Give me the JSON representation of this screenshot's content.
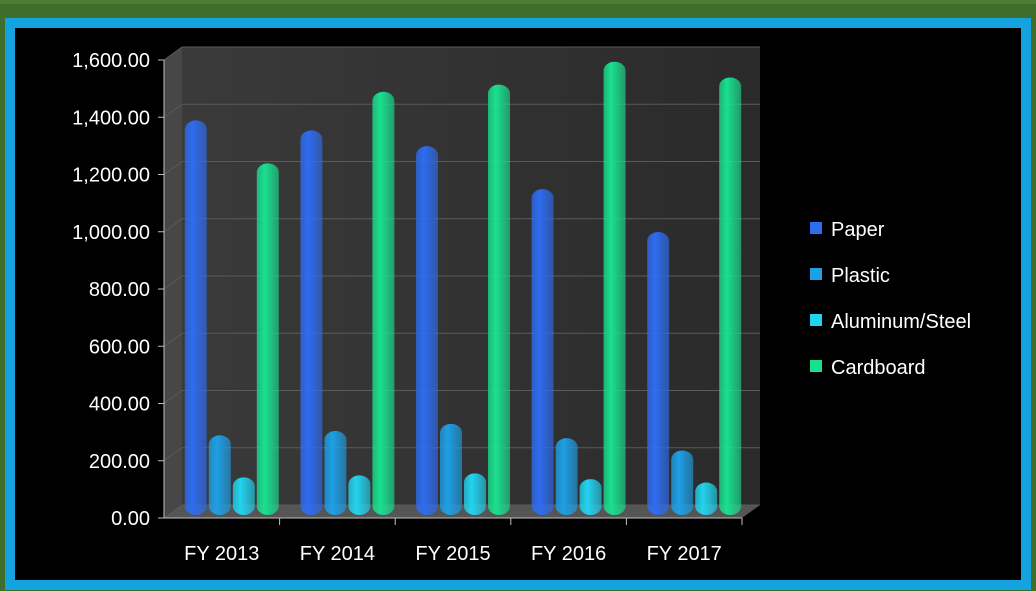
{
  "chart_data": {
    "type": "bar",
    "categories": [
      "FY 2013",
      "FY 2014",
      "FY 2015",
      "FY 2016",
      "FY 2017"
    ],
    "series": [
      {
        "name": "Paper",
        "values": [
          1375,
          1340,
          1285,
          1135,
          985
        ],
        "color": "#2e6cf0"
      },
      {
        "name": "Plastic",
        "values": [
          275,
          290,
          315,
          265,
          222
        ],
        "color": "#1e9fe6"
      },
      {
        "name": "Aluminum/Steel",
        "values": [
          128,
          135,
          142,
          122,
          110
        ],
        "color": "#22d3ef"
      },
      {
        "name": "Cardboard",
        "values": [
          1225,
          1475,
          1500,
          1580,
          1525
        ],
        "color": "#19e08f"
      }
    ],
    "y_ticks": [
      "0.00",
      "200.00",
      "400.00",
      "600.00",
      "800.00",
      "1,000.00",
      "1,200.00",
      "1,400.00",
      "1,600.00"
    ],
    "ylim": [
      0,
      1600
    ],
    "grid": true,
    "legend_position": "right"
  }
}
